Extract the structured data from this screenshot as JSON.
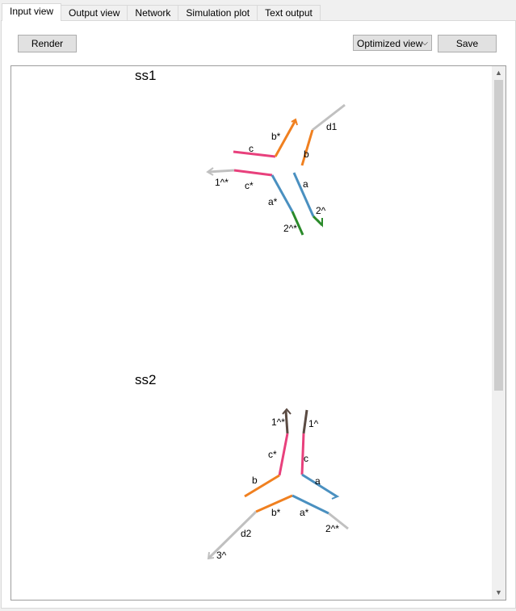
{
  "tabs": [
    {
      "label": "Input view",
      "active": true
    },
    {
      "label": "Output view"
    },
    {
      "label": "Network"
    },
    {
      "label": "Simulation plot"
    },
    {
      "label": "Text output"
    }
  ],
  "toolbar": {
    "render_label": "Render",
    "view_select_value": "Optimized view",
    "save_label": "Save"
  },
  "structures": {
    "ss1": {
      "title": "ss1",
      "labels": {
        "d1": "d1",
        "b_star": "b*",
        "b": "b",
        "c": "c",
        "c_star": "c*",
        "a": "a",
        "a_star": "a*",
        "one_star": "1^*",
        "two": "2^",
        "two_star": "2^*"
      }
    },
    "ss2": {
      "title": "ss2",
      "labels": {
        "one_star": "1^*",
        "one": "1^",
        "c_star": "c*",
        "c": "c",
        "b": "b",
        "a": "a",
        "b_star": "b*",
        "a_star": "a*",
        "d2": "d2",
        "two_star": "2^*",
        "three": "3^"
      }
    }
  },
  "colors": {
    "gray": "#c0c0c0",
    "orange": "#f08020",
    "pink": "#e8407c",
    "blue": "#4a90c0",
    "green": "#2a8a2a",
    "brown": "#5a4a42"
  }
}
